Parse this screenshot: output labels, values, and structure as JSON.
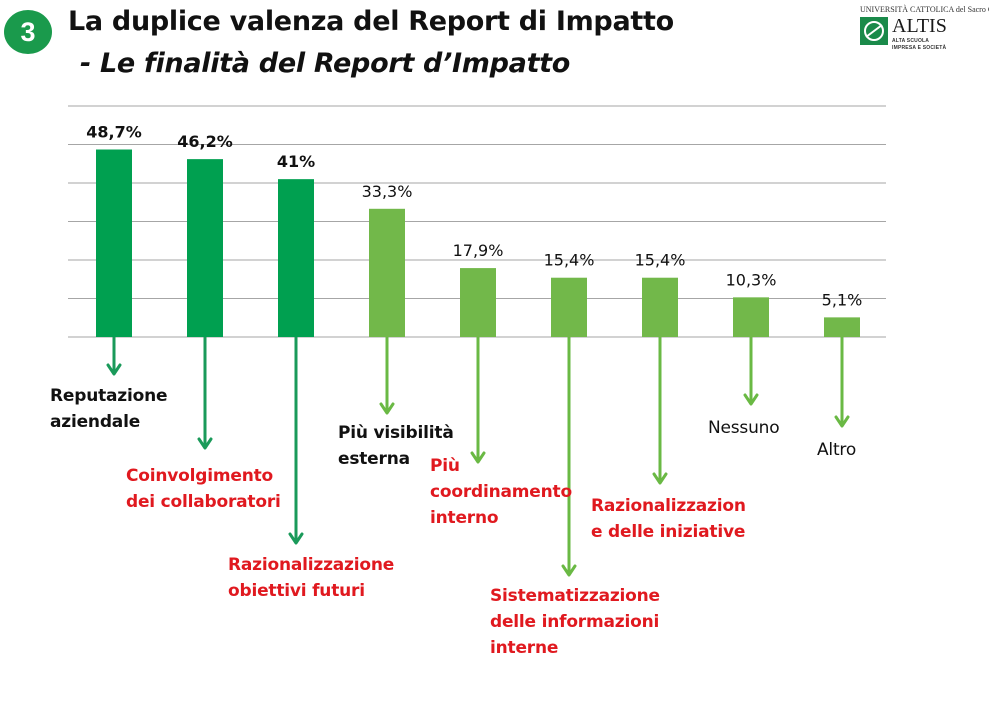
{
  "header": {
    "section_number": "3",
    "title": "La duplice valenza del Report di Impatto",
    "subtitle": "- Le finalità del Report d’Impatto"
  },
  "logo": {
    "university": "UNIVERSITÀ CATTOLICA del Sacro Cuore",
    "name": "ALTIS",
    "tagline_1": "ALTA SCUOLA",
    "tagline_2": "IMPRESA E SOCIETÀ"
  },
  "colors": {
    "badge": "#1a9a4c",
    "bar_dark": "#00a050",
    "bar_light": "#72b84a",
    "arrow_dark": "#1a9a5a",
    "arrow_light": "#6ab944",
    "grid": "#a6a6a6",
    "label_red": "#e0191f"
  },
  "chart_data": {
    "type": "bar",
    "title": "",
    "xlabel": "",
    "ylabel": "",
    "ylim": [
      0,
      60
    ],
    "grid": true,
    "categories": [
      "Reputazione aziendale",
      "Coinvolgimento dei collaboratori",
      "Razionalizzazione obiettivi futuri",
      "Più visibilità esterna",
      "Più coordinamento interno",
      "Sistematizzazione delle informazioni interne",
      "Razionalizzazion e delle iniziative",
      "Nessuno",
      "Altro"
    ],
    "values": [
      48.7,
      46.2,
      41,
      33.3,
      17.9,
      15.4,
      15.4,
      10.3,
      5.1
    ],
    "data_labels": [
      "48,7%",
      "46,2%",
      "41%",
      "33,3%",
      "17,9%",
      "15,4%",
      "15,4%",
      "10,3%",
      "5,1%"
    ],
    "category_labels": [
      "Reputazione\naziendale",
      "Coinvolgimento\ndei collaboratori",
      "Razionalizzazione\nobiettivi futuri",
      "Più visibilità\nesterna",
      "Più\ncoordinamento\ninterno",
      "Sistematizzazione\ndelle informazioni\ninterne",
      "Razionalizzazion\ne delle iniziative",
      "Nessuno",
      "Altro"
    ],
    "bar_shade": [
      "dark",
      "dark",
      "dark",
      "light",
      "light",
      "light",
      "light",
      "light",
      "light"
    ],
    "label_style": [
      "dark",
      "red",
      "red",
      "dark",
      "red",
      "red",
      "red",
      "plain",
      "plain"
    ]
  }
}
